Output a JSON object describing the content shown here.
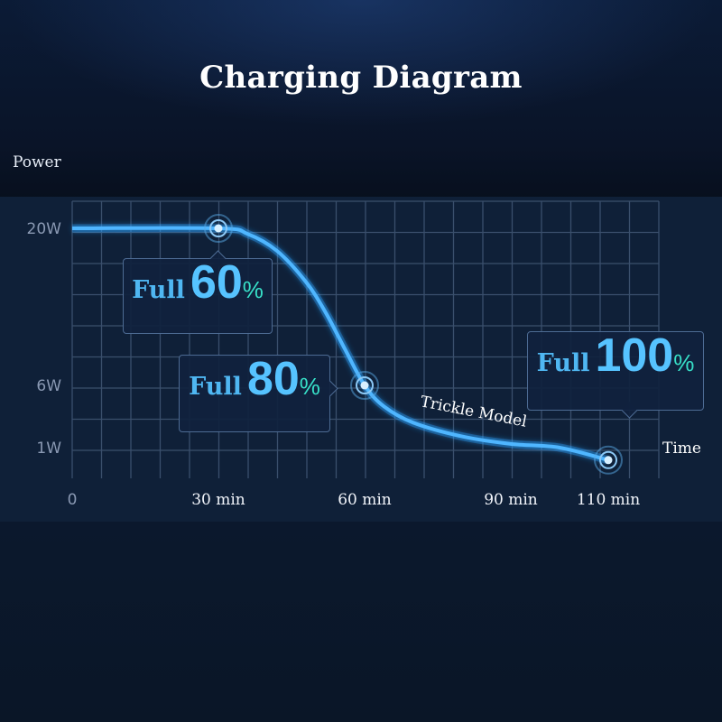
{
  "title": "Charging Diagram",
  "colors": {
    "curve": "#2aa3ff",
    "grid": "#3a4f6c",
    "accent": "#56c3ff",
    "percent": "#37e0c8"
  },
  "chart_data": {
    "type": "line",
    "title": "Charging Diagram",
    "ylabel": "Power",
    "xlabel": "Time",
    "x_ticks": [
      {
        "label": "0",
        "value": 0
      },
      {
        "label": "30 min",
        "value": 30
      },
      {
        "label": "60 min",
        "value": 60
      },
      {
        "label": "90 min",
        "value": 90
      },
      {
        "label": "110 min",
        "value": 110
      }
    ],
    "y_ticks": [
      {
        "label": "20W",
        "value": 20
      },
      {
        "label": "6W",
        "value": 6
      },
      {
        "label": "1W",
        "value": 1
      }
    ],
    "xlim": [
      0,
      120
    ],
    "ylim": [
      0,
      22
    ],
    "grid": true,
    "series": [
      {
        "x": [
          0,
          30,
          36,
          42,
          48,
          52,
          56,
          60,
          64,
          70,
          80,
          90,
          100,
          110
        ],
        "y": [
          20,
          20,
          19.5,
          18,
          15.2,
          12.5,
          9.2,
          6,
          4.3,
          3.0,
          1.9,
          1.3,
          1.0,
          0.8
        ]
      }
    ],
    "markers": [
      {
        "x": 30,
        "y": 20
      },
      {
        "x": 60,
        "y": 6
      },
      {
        "x": 110,
        "y": 0.8
      }
    ],
    "callouts": [
      {
        "word": "Full",
        "value": "60",
        "unit": "%"
      },
      {
        "word": "Full",
        "value": "80",
        "unit": "%"
      },
      {
        "word": "Full",
        "value": "100",
        "unit": "%"
      }
    ],
    "annotation": "Trickle Model"
  }
}
